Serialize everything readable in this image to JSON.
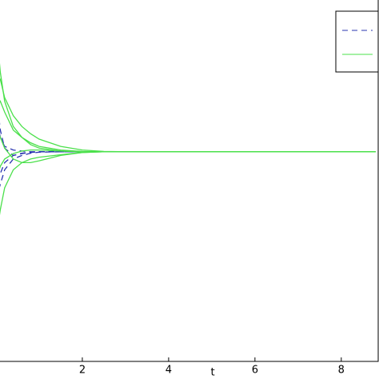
{
  "chart_data": {
    "type": "line",
    "x_label": "t",
    "x": [
      0,
      0.1,
      0.2,
      0.4,
      0.6,
      0.8,
      1,
      1.5,
      2,
      2.5,
      3,
      4,
      6,
      8.8
    ],
    "xlim": [
      0,
      8.8
    ],
    "xticks": [
      2,
      4,
      6,
      8
    ],
    "ylim": [
      0,
      10
    ],
    "series": [
      {
        "color": "#2a35b0",
        "style": "dashed",
        "values": [
          7.5,
          6.4,
          5.9,
          5.7,
          5.75,
          5.78,
          5.8,
          5.8,
          5.8,
          5.8,
          5.8,
          5.8,
          5.8,
          5.8
        ]
      },
      {
        "color": "#2a35b0",
        "style": "dashed",
        "values": [
          4.5,
          4.9,
          5.3,
          5.6,
          5.7,
          5.76,
          5.79,
          5.8,
          5.8,
          5.8,
          5.8,
          5.8,
          5.8,
          5.8
        ]
      },
      {
        "color": "#2a35b0",
        "style": "dashed",
        "values": [
          5.0,
          5.2,
          5.5,
          5.7,
          5.76,
          5.79,
          5.8,
          5.8,
          5.8,
          5.8,
          5.8,
          5.8,
          5.8,
          5.8
        ]
      },
      {
        "color": "#2a35b0",
        "style": "dashed",
        "values": [
          6.8,
          6.2,
          5.95,
          5.85,
          5.82,
          5.8,
          5.8,
          5.8,
          5.8,
          5.8,
          5.8,
          5.8,
          5.8,
          5.8
        ]
      },
      {
        "color": "#4be04b",
        "style": "solid",
        "values": [
          9.3,
          8.0,
          7.2,
          6.5,
          6.2,
          6.0,
          5.9,
          5.82,
          5.8,
          5.8,
          5.8,
          5.8,
          5.8,
          5.8
        ]
      },
      {
        "color": "#4be04b",
        "style": "solid",
        "values": [
          8.0,
          7.8,
          7.3,
          6.8,
          6.5,
          6.3,
          6.15,
          5.95,
          5.85,
          5.81,
          5.8,
          5.8,
          5.8,
          5.8
        ]
      },
      {
        "color": "#4be04b",
        "style": "solid",
        "values": [
          3.4,
          4.2,
          4.8,
          5.3,
          5.5,
          5.6,
          5.65,
          5.72,
          5.78,
          5.8,
          5.8,
          5.8,
          5.8,
          5.8
        ]
      },
      {
        "color": "#4be04b",
        "style": "solid",
        "values": [
          6.5,
          6.2,
          5.9,
          5.6,
          5.5,
          5.5,
          5.55,
          5.7,
          5.78,
          5.8,
          5.8,
          5.8,
          5.8,
          5.8
        ]
      },
      {
        "color": "#4be04b",
        "style": "solid",
        "values": [
          7.0,
          7.2,
          6.9,
          6.4,
          6.2,
          6.05,
          5.95,
          5.85,
          5.81,
          5.8,
          5.8,
          5.8,
          5.8,
          5.8
        ]
      },
      {
        "color": "#4be04b",
        "style": "solid",
        "values": [
          5.0,
          5.4,
          5.6,
          5.75,
          5.82,
          5.85,
          5.85,
          5.82,
          5.8,
          5.8,
          5.8,
          5.8,
          5.8,
          5.8
        ]
      }
    ]
  }
}
